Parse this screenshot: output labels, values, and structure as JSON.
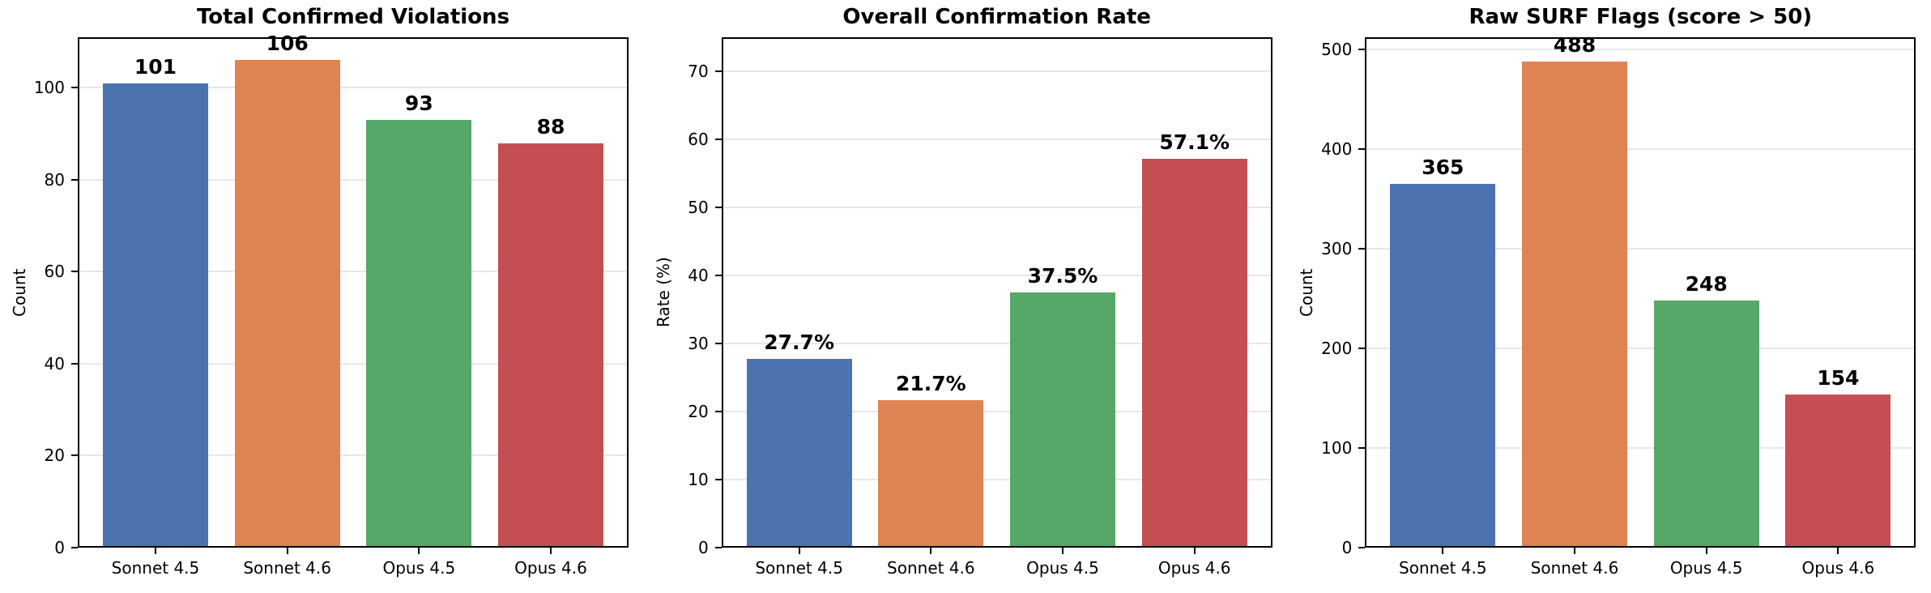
{
  "figure": {
    "background": "#ffffff",
    "bar_colors": [
      "#4C72B0",
      "#DD8452",
      "#55A868",
      "#C44E52"
    ],
    "grid_color": "#e7e7e7",
    "spine_color": "#000000",
    "text_color": "#000000"
  },
  "chart_data": [
    {
      "type": "bar",
      "title": "Total Confirmed Violations",
      "xlabel": "",
      "ylabel": "Count",
      "categories": [
        "Sonnet 4.5",
        "Sonnet 4.6",
        "Opus 4.5",
        "Opus 4.6"
      ],
      "values": [
        101,
        106,
        93,
        88
      ],
      "bar_labels": [
        "101",
        "106",
        "93",
        "88"
      ],
      "yticks": [
        0,
        20,
        40,
        60,
        80,
        100
      ],
      "ylim": [
        0,
        111
      ],
      "grid": true,
      "legend_position": "none"
    },
    {
      "type": "bar",
      "title": "Overall Confirmation Rate",
      "xlabel": "",
      "ylabel": "Rate (%)",
      "categories": [
        "Sonnet 4.5",
        "Sonnet 4.6",
        "Opus 4.5",
        "Opus 4.6"
      ],
      "values": [
        27.7,
        21.7,
        37.5,
        57.1
      ],
      "bar_labels": [
        "27.7%",
        "21.7%",
        "37.5%",
        "57.1%"
      ],
      "yticks": [
        0,
        10,
        20,
        30,
        40,
        50,
        60,
        70
      ],
      "ylim": [
        0,
        75
      ],
      "grid": true,
      "legend_position": "none"
    },
    {
      "type": "bar",
      "title": "Raw SURF Flags (score > 50)",
      "xlabel": "",
      "ylabel": "Count",
      "categories": [
        "Sonnet 4.5",
        "Sonnet 4.6",
        "Opus 4.5",
        "Opus 4.6"
      ],
      "values": [
        365,
        488,
        248,
        154
      ],
      "bar_labels": [
        "365",
        "488",
        "248",
        "154"
      ],
      "yticks": [
        0,
        100,
        200,
        300,
        400,
        500
      ],
      "ylim": [
        0,
        512
      ],
      "grid": true,
      "legend_position": "none"
    }
  ]
}
